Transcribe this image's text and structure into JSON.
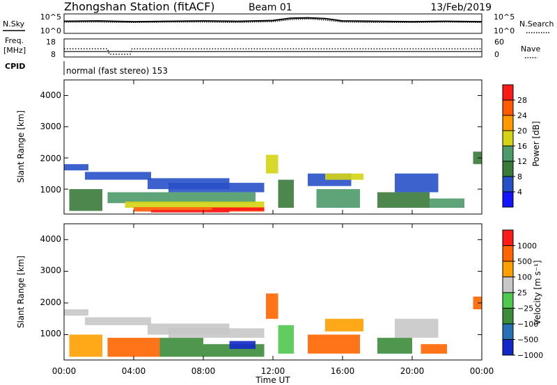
{
  "header": {
    "title": "Zhongshan Station (fitACF)",
    "beam": "Beam 01",
    "date": "13/Feb/2019"
  },
  "noise": {
    "left_label": "N.Sky",
    "right_label": "N.Search",
    "left_ticks": [
      "10^5",
      "10^0"
    ],
    "right_ticks": [
      "10^5",
      "10^0"
    ]
  },
  "freq": {
    "left_label_1": "Freq.",
    "left_label_2": "[MHz]",
    "right_label": "Nave",
    "left_ticks": [
      "18",
      "8"
    ],
    "right_ticks": [
      "60",
      "0"
    ]
  },
  "cpid": {
    "label": "CPID",
    "value": "normal (fast stereo) 153"
  },
  "xaxis": {
    "title": "Time UT",
    "ticks": [
      "00:00",
      "04:00",
      "08:00",
      "12:00",
      "16:00",
      "20:00",
      "00:00"
    ]
  },
  "power_panel": {
    "ylabel": "Slant Range [km]",
    "yticks": [
      "4000",
      "3000",
      "2000",
      "1000"
    ],
    "colorbar_label": "Power [dB]",
    "colorbar_ticks": [
      "28",
      "24",
      "20",
      "16",
      "12",
      "8",
      "4"
    ],
    "colors": [
      "#1414ff",
      "#2850c8",
      "#3a7a3a",
      "#4d9a6a",
      "#d4d414",
      "#ff9900",
      "#ff5a00",
      "#ff1a1a"
    ]
  },
  "velocity_panel": {
    "ylabel": "Slant Range [km]",
    "yticks": [
      "4000",
      "3000",
      "2000",
      "1000"
    ],
    "colorbar_label": "Velocity [m s⁻¹]",
    "colorbar_ticks": [
      "1000",
      "500",
      "100",
      "25",
      "−25",
      "−100",
      "−500",
      "−1000"
    ],
    "colors": [
      "#1428c8",
      "#2870b4",
      "#3c8c3c",
      "#50c850",
      "#c8c8c8",
      "#ffa000",
      "#ff6400",
      "#ff1a1a"
    ]
  },
  "chart_data": {
    "type": "heatmap",
    "x_unit": "hours UT",
    "xlim": [
      0,
      24
    ],
    "ylim": [
      200,
      4500
    ],
    "noise_ylim": [
      0,
      5
    ],
    "freq_ylim": [
      8,
      18
    ],
    "nave_ylim": [
      0,
      60
    ],
    "noise_sky": [
      [
        0,
        3.1
      ],
      [
        2,
        3.2
      ],
      [
        4,
        3.0
      ],
      [
        6,
        3.1
      ],
      [
        8,
        3.2
      ],
      [
        10,
        3.1
      ],
      [
        12,
        3.3
      ],
      [
        13,
        3.9
      ],
      [
        14,
        4.0
      ],
      [
        15,
        3.8
      ],
      [
        16,
        3.2
      ],
      [
        18,
        3.1
      ],
      [
        20,
        3.0
      ],
      [
        22,
        3.1
      ],
      [
        24,
        3.0
      ]
    ],
    "noise_search": [
      [
        0,
        2.9
      ],
      [
        2,
        2.9
      ],
      [
        4,
        2.8
      ],
      [
        6,
        2.9
      ],
      [
        8,
        2.9
      ],
      [
        10,
        2.8
      ],
      [
        12,
        3.0
      ],
      [
        13,
        3.5
      ],
      [
        14,
        3.7
      ],
      [
        15,
        3.4
      ],
      [
        16,
        2.9
      ],
      [
        18,
        2.8
      ],
      [
        20,
        2.8
      ],
      [
        22,
        2.9
      ],
      [
        24,
        2.8
      ]
    ],
    "freq_mhz": [
      [
        0,
        12.5
      ],
      [
        2.5,
        12.5
      ],
      [
        2.6,
        9.5
      ],
      [
        3.8,
        9.5
      ],
      [
        3.9,
        12.5
      ],
      [
        24,
        12.5
      ]
    ],
    "nave": [
      [
        0,
        18
      ],
      [
        24,
        18
      ]
    ],
    "power_regions": [
      {
        "t0": 0.0,
        "t1": 1.4,
        "r0": 1600,
        "r1": 1800,
        "level": 1
      },
      {
        "t0": 1.2,
        "t1": 5.0,
        "r0": 1300,
        "r1": 1550,
        "level": 1
      },
      {
        "t0": 4.8,
        "t1": 9.5,
        "r0": 1000,
        "r1": 1350,
        "level": 1
      },
      {
        "t0": 6.0,
        "t1": 11.5,
        "r0": 900,
        "r1": 1200,
        "level": 1
      },
      {
        "t0": 0.3,
        "t1": 2.2,
        "r0": 300,
        "r1": 1000,
        "level": 2
      },
      {
        "t0": 2.5,
        "t1": 11.0,
        "r0": 550,
        "r1": 900,
        "level": 3
      },
      {
        "t0": 3.5,
        "t1": 11.5,
        "r0": 400,
        "r1": 600,
        "level": 4
      },
      {
        "t0": 4.0,
        "t1": 11.5,
        "r0": 280,
        "r1": 420,
        "level": 6
      },
      {
        "t0": 5.0,
        "t1": 9.5,
        "r0": 250,
        "r1": 330,
        "level": 7
      },
      {
        "t0": 8.5,
        "t1": 11.5,
        "r0": 300,
        "r1": 400,
        "level": 7
      },
      {
        "t0": 11.6,
        "t1": 12.3,
        "r0": 1500,
        "r1": 2100,
        "level": 4
      },
      {
        "t0": 12.3,
        "t1": 13.2,
        "r0": 400,
        "r1": 1300,
        "level": 2
      },
      {
        "t0": 14.0,
        "t1": 16.5,
        "r0": 1100,
        "r1": 1500,
        "level": 1
      },
      {
        "t0": 14.5,
        "t1": 17.0,
        "r0": 400,
        "r1": 1000,
        "level": 3
      },
      {
        "t0": 15.0,
        "t1": 17.2,
        "r0": 1300,
        "r1": 1500,
        "level": 4
      },
      {
        "t0": 18.0,
        "t1": 21.0,
        "r0": 400,
        "r1": 900,
        "level": 2
      },
      {
        "t0": 19.0,
        "t1": 21.5,
        "r0": 900,
        "r1": 1500,
        "level": 1
      },
      {
        "t0": 21.0,
        "t1": 23.0,
        "r0": 400,
        "r1": 700,
        "level": 3
      },
      {
        "t0": 23.5,
        "t1": 24.0,
        "r0": 1800,
        "r1": 2200,
        "level": 2
      }
    ],
    "velocity_regions": [
      {
        "t0": 0.0,
        "t1": 1.4,
        "r0": 1600,
        "r1": 1800,
        "level": 4
      },
      {
        "t0": 1.2,
        "t1": 5.0,
        "r0": 1300,
        "r1": 1550,
        "level": 4
      },
      {
        "t0": 4.8,
        "t1": 9.5,
        "r0": 1000,
        "r1": 1350,
        "level": 4
      },
      {
        "t0": 6.0,
        "t1": 11.5,
        "r0": 900,
        "r1": 1200,
        "level": 4
      },
      {
        "t0": 0.3,
        "t1": 2.2,
        "r0": 300,
        "r1": 1000,
        "level": 5
      },
      {
        "t0": 2.5,
        "t1": 5.5,
        "r0": 300,
        "r1": 900,
        "level": 6
      },
      {
        "t0": 5.5,
        "t1": 8.0,
        "r0": 300,
        "r1": 900,
        "level": 2
      },
      {
        "t0": 8.0,
        "t1": 11.5,
        "r0": 300,
        "r1": 700,
        "level": 2
      },
      {
        "t0": 9.5,
        "t1": 11.0,
        "r0": 550,
        "r1": 800,
        "level": 0
      },
      {
        "t0": 11.6,
        "t1": 12.3,
        "r0": 1500,
        "r1": 2300,
        "level": 6
      },
      {
        "t0": 12.3,
        "t1": 13.2,
        "r0": 400,
        "r1": 1300,
        "level": 3
      },
      {
        "t0": 14.0,
        "t1": 17.0,
        "r0": 400,
        "r1": 1000,
        "level": 6
      },
      {
        "t0": 15.0,
        "t1": 17.2,
        "r0": 1100,
        "r1": 1500,
        "level": 5
      },
      {
        "t0": 18.0,
        "t1": 20.0,
        "r0": 400,
        "r1": 900,
        "level": 2
      },
      {
        "t0": 19.0,
        "t1": 21.5,
        "r0": 900,
        "r1": 1500,
        "level": 4
      },
      {
        "t0": 20.5,
        "t1": 22.0,
        "r0": 400,
        "r1": 700,
        "level": 6
      },
      {
        "t0": 23.5,
        "t1": 24.0,
        "r0": 1800,
        "r1": 2200,
        "level": 6
      }
    ]
  }
}
